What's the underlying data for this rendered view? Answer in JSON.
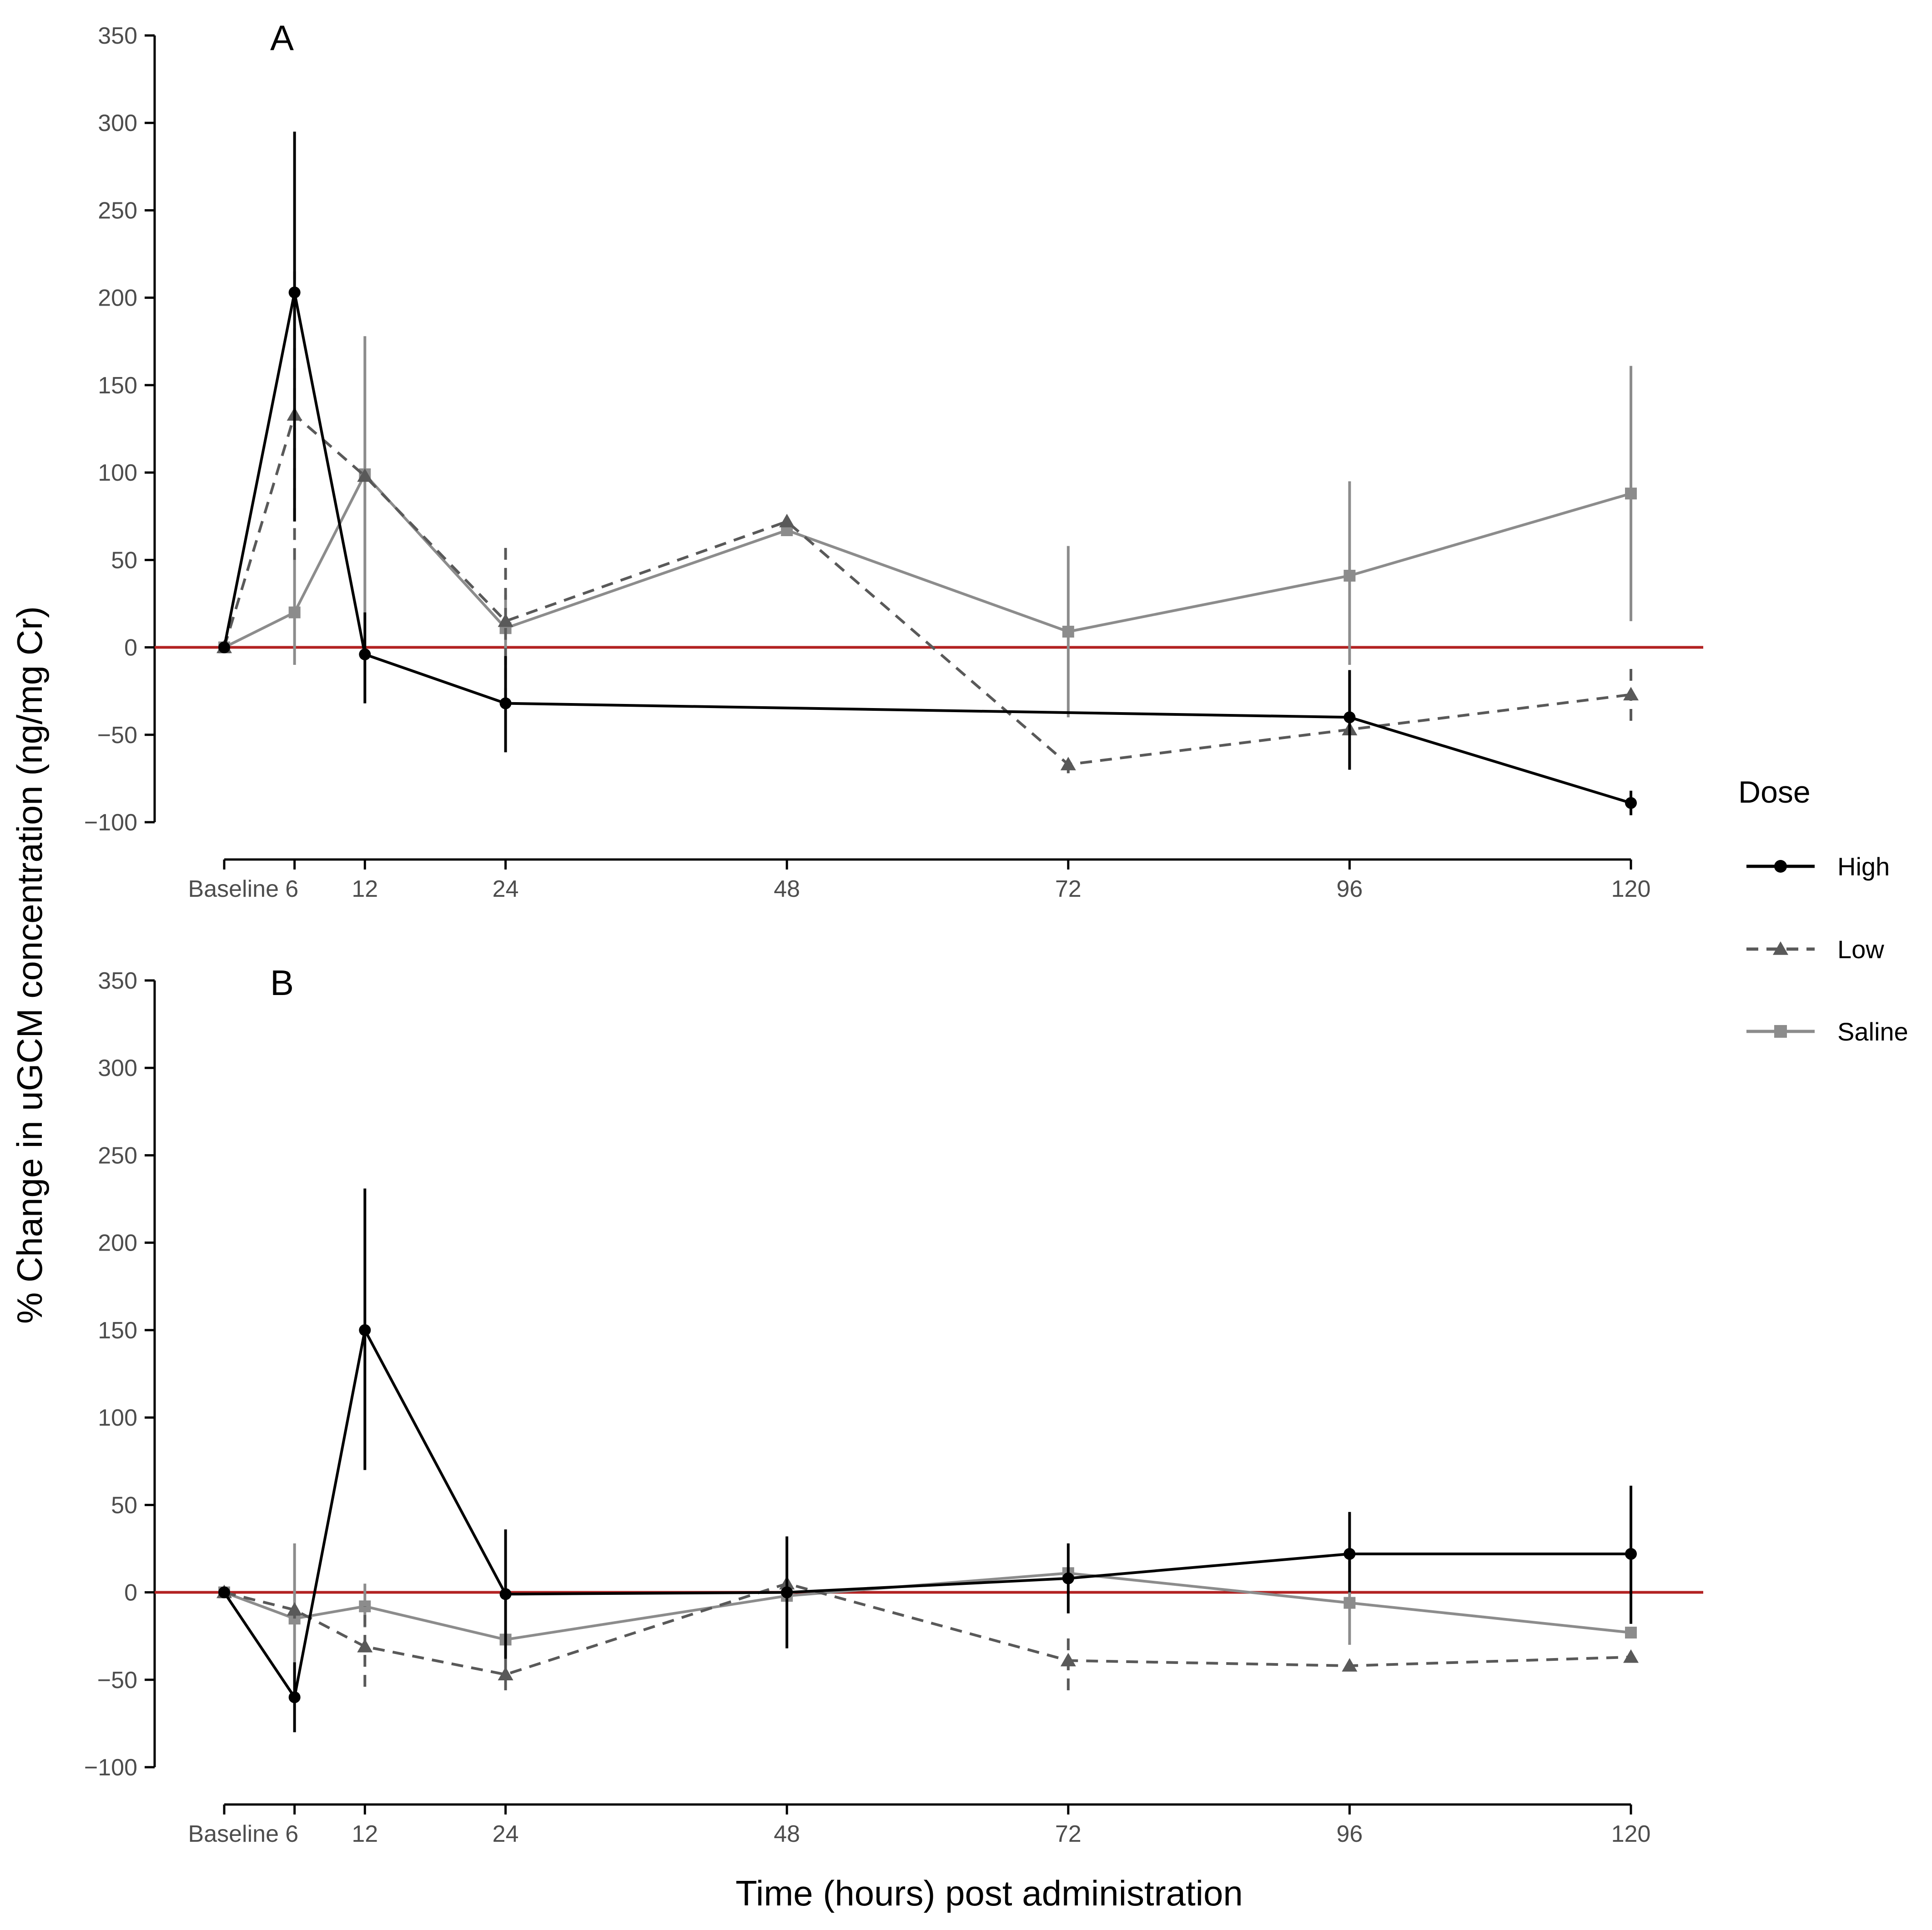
{
  "chart_data": {
    "type": "line",
    "ylabel": "% Change in uGCM concentration (ng/mg Cr)",
    "xlabel": "Time (hours) post administration",
    "x": [
      0,
      6,
      12,
      24,
      48,
      72,
      96,
      120
    ],
    "x_tick_labels": [
      "Baseline",
      "6",
      "12",
      "24",
      "48",
      "72",
      "96",
      "120"
    ],
    "ylim": [
      -100,
      350
    ],
    "y_ticks": [
      -100,
      -50,
      0,
      50,
      100,
      150,
      200,
      250,
      300,
      350
    ],
    "y_tick_labels": [
      "−100",
      "−50",
      "0",
      "50",
      "100",
      "150",
      "200",
      "250",
      "300",
      "350"
    ],
    "reference_line": {
      "y": 0,
      "color": "#b22222"
    },
    "legend": {
      "title": "Dose",
      "position": "right"
    },
    "series_styles": [
      {
        "name": "High",
        "color": "#000000",
        "dash": "solid",
        "marker": "circle"
      },
      {
        "name": "Low",
        "color": "#595959",
        "dash": "dashed",
        "marker": "triangle"
      },
      {
        "name": "Saline",
        "color": "#8c8c8c",
        "dash": "solid",
        "marker": "square"
      }
    ],
    "panels": [
      {
        "tag": "A",
        "series": [
          {
            "name": "High",
            "values": [
              0,
              203,
              -4,
              -32,
              null,
              null,
              -40,
              -89
            ],
            "err_low": [
              null,
              72,
              -32,
              -60,
              null,
              null,
              -70,
              -96
            ],
            "err_high": [
              null,
              295,
              20,
              -5,
              null,
              null,
              -13,
              -82
            ]
          },
          {
            "name": "Low",
            "values": [
              0,
              133,
              98,
              15,
              72,
              -67,
              -47,
              -27
            ],
            "err_low": [
              null,
              50,
              null,
              -30,
              null,
              -72,
              null,
              -42
            ],
            "err_high": [
              null,
              215,
              null,
              61,
              null,
              -62,
              null,
              -11
            ]
          },
          {
            "name": "Saline",
            "values": [
              0,
              20,
              99,
              11,
              67,
              9,
              41,
              88
            ],
            "err_low": [
              null,
              -10,
              20,
              -10,
              null,
              -40,
              -10,
              15
            ],
            "err_high": [
              null,
              50,
              178,
              30,
              null,
              58,
              95,
              161
            ]
          }
        ]
      },
      {
        "tag": "B",
        "series": [
          {
            "name": "High",
            "values": [
              0,
              -60,
              150,
              -1,
              0,
              8,
              22,
              22
            ],
            "err_low": [
              null,
              -80,
              70,
              -38,
              -32,
              -12,
              0,
              -18
            ],
            "err_high": [
              null,
              -40,
              231,
              36,
              32,
              28,
              46,
              61
            ]
          },
          {
            "name": "Low",
            "values": [
              0,
              -10,
              -31,
              -47,
              5,
              -39,
              -42,
              -37
            ],
            "err_low": [
              null,
              -15,
              -54,
              -56,
              null,
              -56,
              null,
              null
            ],
            "err_high": [
              null,
              -5,
              -8,
              -38,
              null,
              -22,
              null,
              null
            ]
          },
          {
            "name": "Saline",
            "values": [
              0,
              -15,
              -8,
              -27,
              -2,
              11,
              -6,
              -23
            ],
            "err_low": [
              null,
              -58,
              -20,
              null,
              null,
              null,
              -30,
              null
            ],
            "err_high": [
              null,
              28,
              5,
              null,
              null,
              null,
              18,
              null
            ]
          }
        ]
      }
    ]
  }
}
